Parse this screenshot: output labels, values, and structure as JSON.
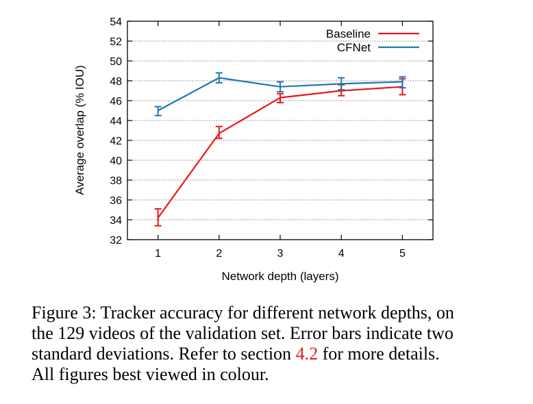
{
  "chart_data": {
    "type": "line",
    "xlabel": "Network depth (layers)",
    "ylabel": "Average overlap (% IOU)",
    "x": [
      1,
      2,
      3,
      4,
      5
    ],
    "xlim": [
      0.5,
      5.5
    ],
    "ylim": [
      32,
      54
    ],
    "yticks": [
      32,
      34,
      36,
      38,
      40,
      42,
      44,
      46,
      48,
      50,
      52,
      54
    ],
    "xticks": [
      1,
      2,
      3,
      4,
      5
    ],
    "grid": "horizontal dotted",
    "legend_position": "top-right",
    "series": [
      {
        "name": "Baseline",
        "color": "#e8161a",
        "values": [
          34.2,
          42.7,
          46.3,
          47.0,
          47.4
        ],
        "error_low": [
          33.4,
          42.2,
          45.8,
          46.5,
          46.6
        ],
        "error_high": [
          35.1,
          43.4,
          46.7,
          47.6,
          48.2
        ]
      },
      {
        "name": "CFNet",
        "color": "#1f77b4",
        "values": [
          45.0,
          48.3,
          47.4,
          47.7,
          47.9
        ],
        "error_low": [
          44.5,
          47.8,
          46.9,
          47.1,
          47.3
        ],
        "error_high": [
          45.4,
          48.8,
          47.9,
          48.3,
          48.4
        ]
      }
    ]
  },
  "caption": {
    "line1": "Figure 3: Tracker accuracy for different network depths, on",
    "line2": "the 129 videos of the validation set. Error bars indicate two",
    "line3_pre": "standard deviations.  Refer to section ",
    "line3_ref": "4.2",
    "line3_post": " for more details.",
    "line4": "All figures best viewed in colour."
  }
}
